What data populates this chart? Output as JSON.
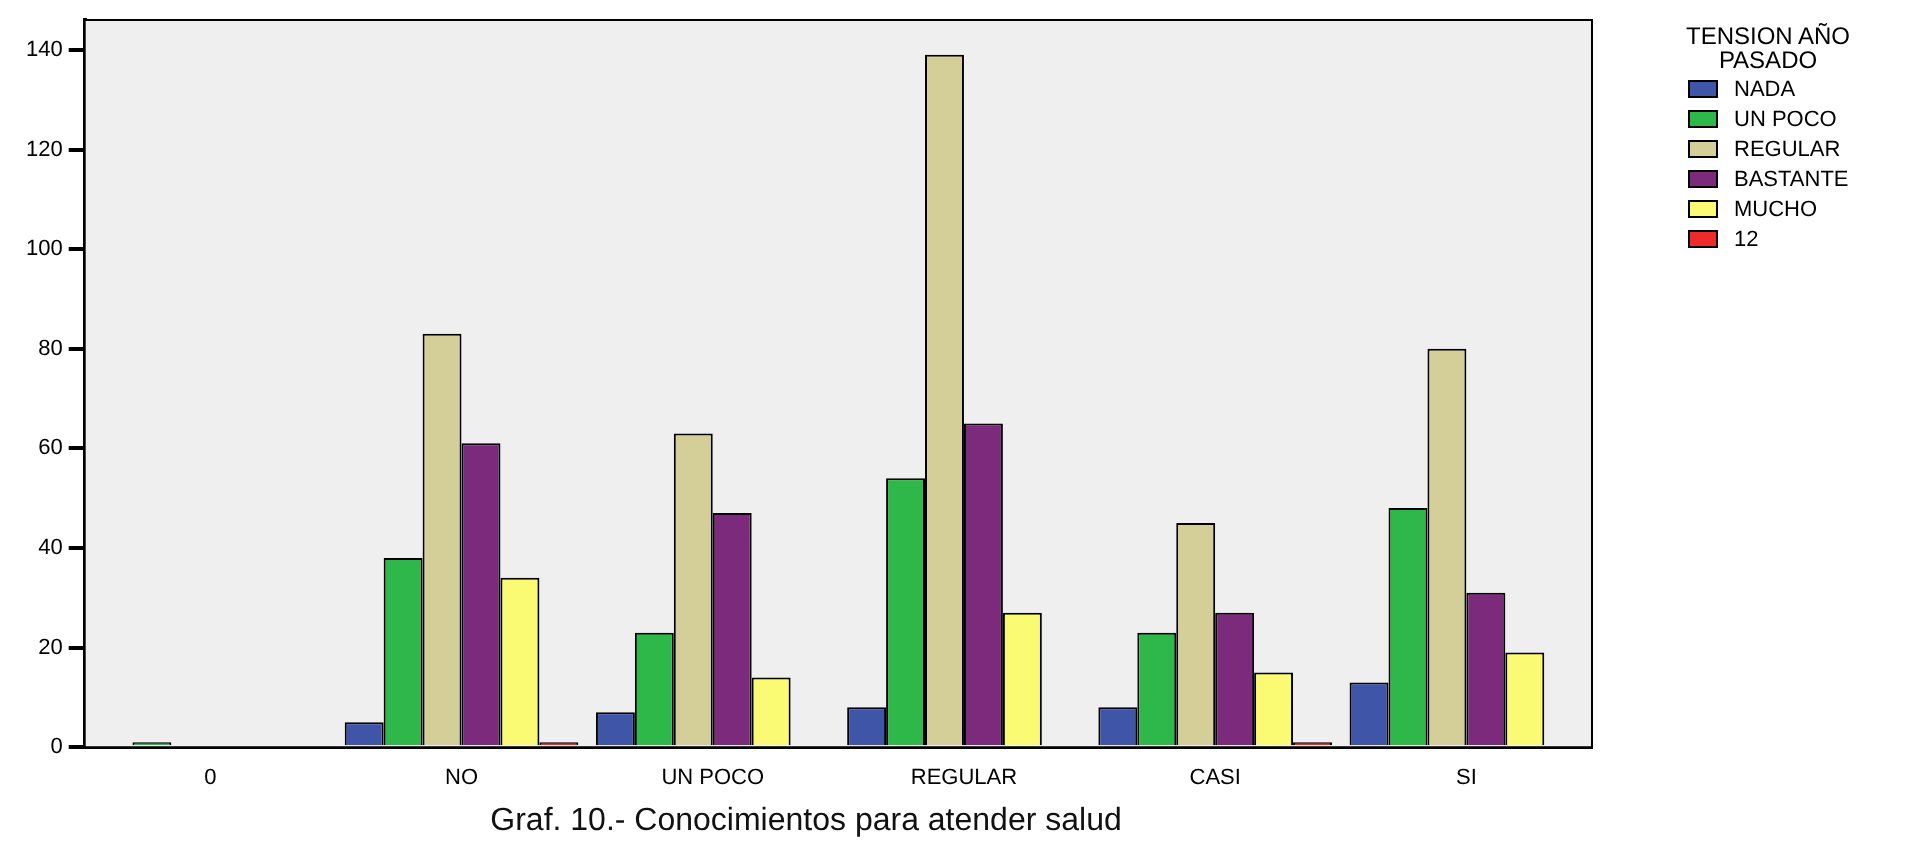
{
  "chart_data": {
    "type": "bar",
    "title": "Graf. 10.- Conocimientos para atender salud",
    "legend_title": "TENSION AÑO PASADO",
    "categories": [
      "0",
      "NO",
      "UN POCO",
      "REGULAR",
      "CASI",
      "SI"
    ],
    "series": [
      {
        "name": "NADA",
        "color": "#3f56a8",
        "values": [
          0,
          5,
          7,
          8,
          8,
          13
        ]
      },
      {
        "name": "UN POCO",
        "color": "#2fb84a",
        "values": [
          1,
          38,
          23,
          54,
          23,
          48
        ]
      },
      {
        "name": "REGULAR",
        "color": "#d4cf99",
        "values": [
          0,
          83,
          63,
          139,
          45,
          80
        ]
      },
      {
        "name": "BASTANTE",
        "color": "#7b2a7c",
        "values": [
          0,
          61,
          47,
          65,
          27,
          31
        ]
      },
      {
        "name": "MUCHO",
        "color": "#fafa73",
        "values": [
          0,
          34,
          14,
          27,
          15,
          19
        ]
      },
      {
        "name": "12",
        "color": "#ee2a2a",
        "values": [
          0,
          1,
          0,
          0,
          1,
          0
        ]
      }
    ],
    "ylim": [
      0,
      146
    ],
    "yticks": [
      0,
      20,
      40,
      60,
      80,
      100,
      120,
      140
    ],
    "grid": false,
    "legend": "top right"
  }
}
